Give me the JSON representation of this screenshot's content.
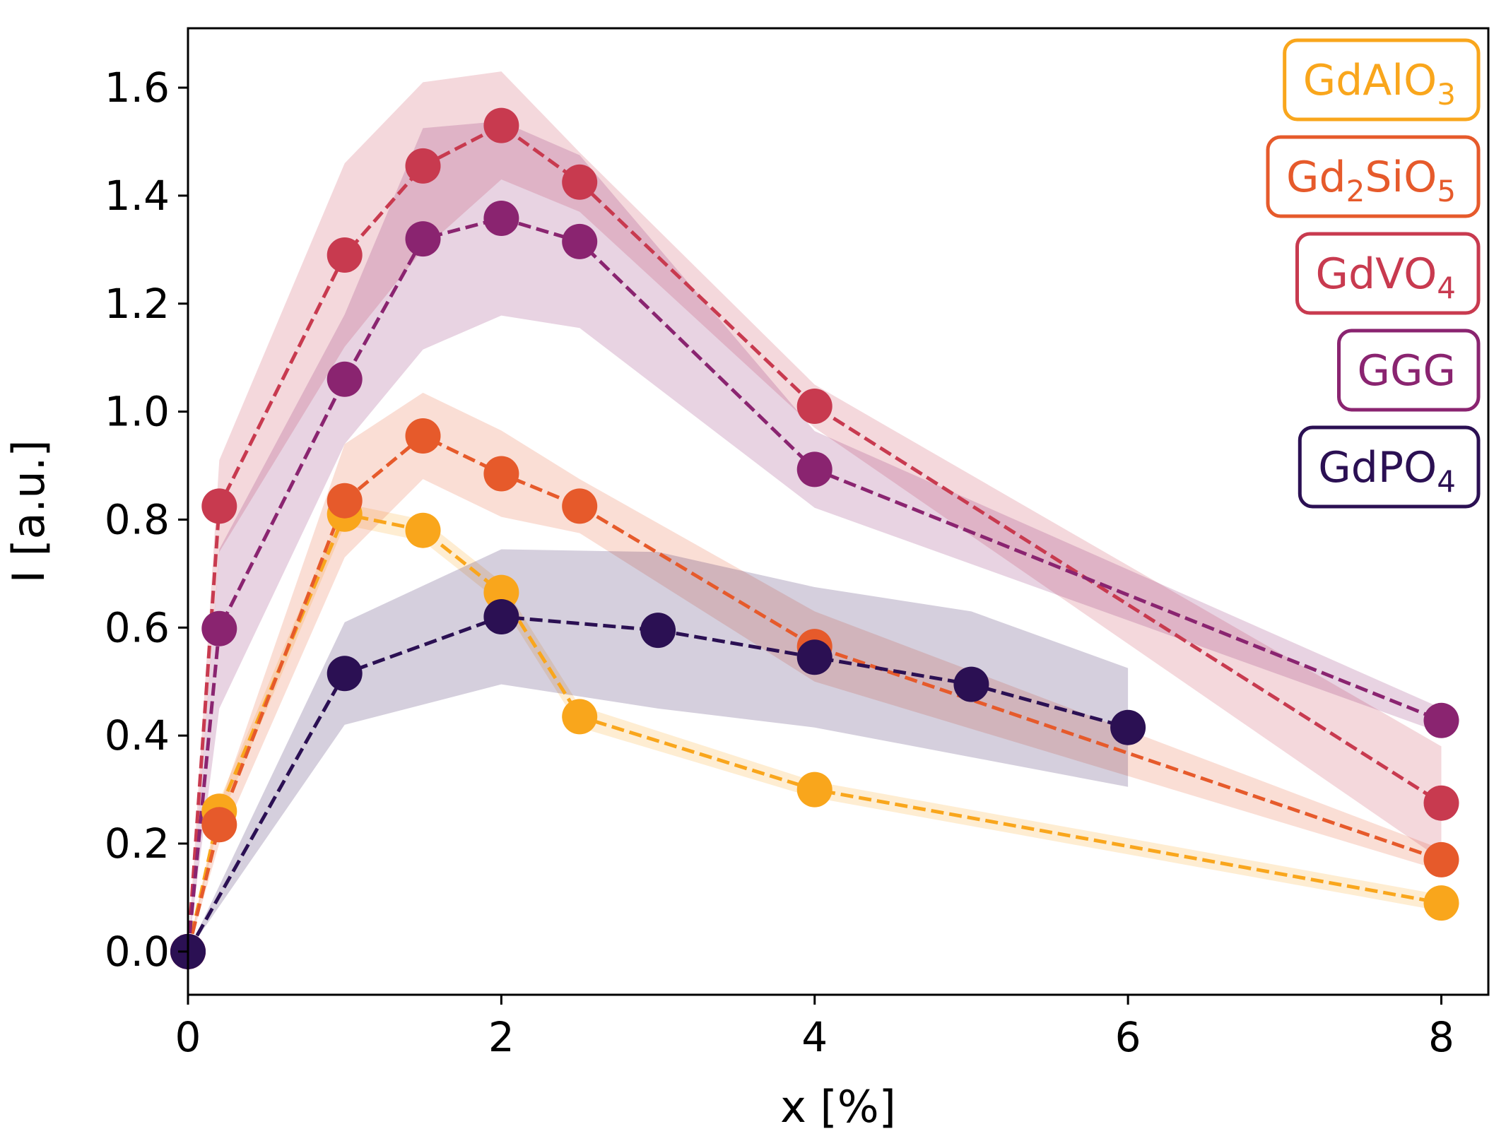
{
  "chart_data": {
    "type": "line",
    "title": "",
    "xlabel": "x [%]",
    "ylabel": "I [a.u.]",
    "xlim": [
      0,
      8.3
    ],
    "ylim": [
      -0.08,
      1.71
    ],
    "xticks": [
      0,
      2,
      4,
      6,
      8
    ],
    "yticks": [
      0.0,
      0.2,
      0.4,
      0.6,
      0.8,
      1.0,
      1.2,
      1.4,
      1.6
    ],
    "xtick_labels": [
      "0",
      "2",
      "4",
      "6",
      "8"
    ],
    "ytick_labels": [
      "0.0",
      "0.2",
      "0.4",
      "0.6",
      "0.8",
      "1.0",
      "1.2",
      "1.4",
      "1.6"
    ],
    "legend_position": "top-right",
    "series": [
      {
        "name": "GdAlO3",
        "legend": {
          "base": "GdAlO",
          "sub1": "3",
          "mid": "",
          "sub2": ""
        },
        "color": "#f9a61c",
        "x": [
          0,
          0.2,
          1,
          1.5,
          2,
          2.5,
          4,
          8
        ],
        "y": [
          0,
          0.26,
          0.81,
          0.78,
          0.665,
          0.435,
          0.3,
          0.09
        ],
        "lower": [
          0,
          0.24,
          0.79,
          0.76,
          0.645,
          0.415,
          0.285,
          0.075
        ],
        "upper": [
          0,
          0.28,
          0.83,
          0.8,
          0.685,
          0.455,
          0.315,
          0.105
        ]
      },
      {
        "name": "Gd2SiO5",
        "legend": {
          "base": "Gd",
          "sub1": "2",
          "mid": "SiO",
          "sub2": "5"
        },
        "color": "#e65a2b",
        "x": [
          0,
          0.2,
          1,
          1.5,
          2,
          2.5,
          4,
          8
        ],
        "y": [
          0,
          0.235,
          0.835,
          0.955,
          0.885,
          0.825,
          0.565,
          0.17
        ],
        "lower": [
          0,
          0.2,
          0.73,
          0.875,
          0.805,
          0.775,
          0.5,
          0.15
        ],
        "upper": [
          0,
          0.27,
          0.94,
          1.035,
          0.965,
          0.875,
          0.63,
          0.19
        ]
      },
      {
        "name": "GdVO4",
        "legend": {
          "base": "GdVO",
          "sub1": "4",
          "mid": "",
          "sub2": ""
        },
        "color": "#c83a4f",
        "x": [
          0,
          0.2,
          1,
          1.5,
          2,
          2.5,
          4,
          8
        ],
        "y": [
          0,
          0.825,
          1.29,
          1.455,
          1.53,
          1.425,
          1.01,
          0.275
        ],
        "lower": [
          0,
          0.74,
          1.12,
          1.3,
          1.43,
          1.37,
          0.97,
          0.17
        ],
        "upper": [
          0,
          0.91,
          1.46,
          1.61,
          1.63,
          1.48,
          1.05,
          0.38
        ]
      },
      {
        "name": "GGG",
        "legend": {
          "base": "GGG",
          "sub1": "",
          "mid": "",
          "sub2": ""
        },
        "color": "#8a2470",
        "x": [
          0,
          0.2,
          1,
          1.5,
          2,
          2.5,
          4,
          8
        ],
        "y": [
          0,
          0.598,
          1.06,
          1.32,
          1.358,
          1.315,
          0.893,
          0.428
        ],
        "lower": [
          0,
          0.45,
          0.94,
          1.115,
          1.178,
          1.155,
          0.822,
          0.405
        ],
        "upper": [
          0,
          0.745,
          1.18,
          1.525,
          1.538,
          1.475,
          0.964,
          0.451
        ]
      },
      {
        "name": "GdPO4",
        "legend": {
          "base": "GdPO",
          "sub1": "4",
          "mid": "",
          "sub2": ""
        },
        "color": "#2b1053",
        "x": [
          0,
          1,
          2,
          3,
          4,
          5,
          6
        ],
        "y": [
          0,
          0.515,
          0.62,
          0.595,
          0.545,
          0.495,
          0.415
        ],
        "lower": [
          0,
          0.42,
          0.495,
          0.45,
          0.415,
          0.36,
          0.305
        ],
        "upper": [
          0,
          0.61,
          0.745,
          0.74,
          0.675,
          0.63,
          0.525
        ]
      }
    ]
  }
}
